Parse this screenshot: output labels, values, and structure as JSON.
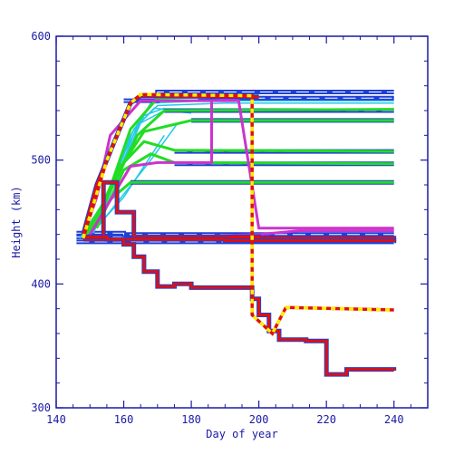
{
  "chart_data": {
    "type": "line",
    "title": "",
    "xlabel": "Day of year",
    "ylabel": "Height (km)",
    "xlim": [
      140,
      250
    ],
    "ylim": [
      300,
      600
    ],
    "x_ticks": [
      140,
      160,
      180,
      200,
      220,
      240
    ],
    "y_ticks": [
      300,
      400,
      500,
      600
    ],
    "grid": false,
    "colors": {
      "axis": "#1a1aa6",
      "blue": "#1f3fd6",
      "cyan": "#22c8e6",
      "green": "#22dd22",
      "magenta": "#cc33cc",
      "red": "#dd1111",
      "yellow": "#ffee00"
    },
    "series": [
      {
        "color": "blue",
        "style": "step",
        "points": [
          [
            146,
            438
          ],
          [
            160,
            437
          ],
          [
            200,
            437
          ],
          [
            240,
            437
          ]
        ]
      },
      {
        "color": "blue",
        "style": "step",
        "points": [
          [
            146,
            434
          ],
          [
            180,
            434
          ],
          [
            240,
            433
          ]
        ]
      },
      {
        "color": "blue",
        "style": "step",
        "points": [
          [
            146,
            441
          ],
          [
            160,
            440
          ],
          [
            240,
            440
          ]
        ]
      },
      {
        "color": "cyan",
        "style": "line",
        "points": [
          [
            148,
            438
          ],
          [
            155,
            470
          ],
          [
            162,
            520
          ],
          [
            168,
            546
          ],
          [
            185,
            548
          ],
          [
            240,
            548
          ]
        ]
      },
      {
        "color": "cyan",
        "style": "line",
        "points": [
          [
            150,
            440
          ],
          [
            157,
            480
          ],
          [
            164,
            528
          ],
          [
            170,
            544
          ],
          [
            190,
            546
          ],
          [
            240,
            546
          ]
        ]
      },
      {
        "color": "cyan",
        "style": "line",
        "points": [
          [
            149,
            438
          ],
          [
            156,
            476
          ],
          [
            163,
            525
          ],
          [
            169,
            542
          ],
          [
            175,
            540
          ]
        ]
      },
      {
        "color": "cyan",
        "style": "line",
        "points": [
          [
            151,
            441
          ],
          [
            158,
            486
          ],
          [
            165,
            530
          ],
          [
            172,
            540
          ],
          [
            180,
            538
          ]
        ]
      },
      {
        "color": "cyan",
        "style": "line",
        "points": [
          [
            147,
            437
          ],
          [
            154,
            466
          ],
          [
            160,
            505
          ],
          [
            166,
            536
          ],
          [
            172,
            542
          ]
        ]
      },
      {
        "color": "cyan",
        "style": "line",
        "points": [
          [
            152,
            445
          ],
          [
            168,
            500
          ],
          [
            176,
            530
          ]
        ]
      },
      {
        "color": "cyan",
        "style": "line",
        "points": [
          [
            150,
            440
          ],
          [
            160,
            470
          ],
          [
            172,
            520
          ]
        ]
      },
      {
        "color": "blue",
        "style": "step",
        "points": [
          [
            160,
            548
          ],
          [
            170,
            555
          ],
          [
            240,
            555
          ]
        ]
      },
      {
        "color": "blue",
        "style": "step",
        "points": [
          [
            182,
            550
          ],
          [
            200,
            550
          ],
          [
            240,
            550
          ]
        ]
      },
      {
        "color": "blue",
        "style": "step",
        "points": [
          [
            172,
            540
          ],
          [
            240,
            540
          ]
        ]
      },
      {
        "color": "blue",
        "style": "step",
        "points": [
          [
            180,
            532
          ],
          [
            240,
            532
          ]
        ]
      },
      {
        "color": "blue",
        "style": "step",
        "points": [
          [
            175,
            507
          ],
          [
            240,
            507
          ]
        ]
      },
      {
        "color": "blue",
        "style": "step",
        "points": [
          [
            175,
            497
          ],
          [
            240,
            497
          ]
        ]
      },
      {
        "color": "blue",
        "style": "step",
        "points": [
          [
            162,
            482
          ],
          [
            240,
            482
          ]
        ]
      },
      {
        "color": "green",
        "style": "line",
        "points": [
          [
            148,
            438
          ],
          [
            155,
            470
          ],
          [
            162,
            525
          ],
          [
            170,
            550
          ],
          [
            200,
            552
          ]
        ]
      },
      {
        "color": "green",
        "style": "line",
        "points": [
          [
            149,
            440
          ],
          [
            157,
            480
          ],
          [
            164,
            520
          ],
          [
            172,
            540
          ],
          [
            240,
            541
          ]
        ]
      },
      {
        "color": "green",
        "style": "line",
        "points": [
          [
            150,
            442
          ],
          [
            158,
            490
          ],
          [
            166,
            523
          ],
          [
            180,
            532
          ],
          [
            240,
            532
          ]
        ]
      },
      {
        "color": "green",
        "style": "line",
        "points": [
          [
            151,
            444
          ],
          [
            159,
            495
          ],
          [
            166,
            515
          ],
          [
            175,
            508
          ],
          [
            240,
            507
          ]
        ]
      },
      {
        "color": "green",
        "style": "line",
        "points": [
          [
            152,
            445
          ],
          [
            160,
            492
          ],
          [
            168,
            505
          ],
          [
            175,
            498
          ],
          [
            240,
            497
          ]
        ]
      },
      {
        "color": "green",
        "style": "line",
        "points": [
          [
            150,
            441
          ],
          [
            156,
            468
          ],
          [
            162,
            482
          ],
          [
            240,
            482
          ]
        ]
      },
      {
        "color": "magenta",
        "style": "line",
        "points": [
          [
            150,
            440
          ],
          [
            162,
            495
          ],
          [
            170,
            498
          ],
          [
            186,
            498
          ],
          [
            186,
            548
          ],
          [
            194,
            549
          ]
        ]
      },
      {
        "color": "magenta",
        "style": "line",
        "points": [
          [
            148,
            438
          ],
          [
            152,
            470
          ],
          [
            156,
            520
          ],
          [
            165,
            548
          ],
          [
            185,
            548
          ],
          [
            194,
            548
          ],
          [
            200,
            445
          ],
          [
            240,
            445
          ]
        ]
      },
      {
        "color": "magenta",
        "style": "line",
        "points": [
          [
            156,
            436
          ],
          [
            200,
            440
          ],
          [
            212,
            443
          ],
          [
            240,
            443
          ]
        ]
      },
      {
        "color": "red",
        "style": "step",
        "points": [
          [
            148,
            437
          ],
          [
            154,
            482
          ],
          [
            158,
            458
          ],
          [
            163,
            438
          ],
          [
            200,
            437
          ],
          [
            240,
            436
          ]
        ]
      },
      {
        "color": "red",
        "style": "step",
        "points": [
          [
            148,
            436
          ],
          [
            190,
            435
          ],
          [
            240,
            434
          ]
        ]
      },
      {
        "color": "red",
        "style": "step",
        "points": [
          [
            148,
            438
          ],
          [
            155,
            436
          ],
          [
            160,
            432
          ],
          [
            163,
            422
          ],
          [
            166,
            410
          ],
          [
            170,
            398
          ],
          [
            175,
            400
          ],
          [
            180,
            397
          ],
          [
            195,
            397
          ],
          [
            198,
            388
          ],
          [
            200,
            375
          ],
          [
            203,
            362
          ],
          [
            206,
            355
          ],
          [
            210,
            355
          ],
          [
            214,
            354
          ],
          [
            220,
            327
          ],
          [
            226,
            331
          ],
          [
            240,
            330
          ]
        ]
      },
      {
        "color": "red",
        "style": "line",
        "points": [
          [
            148,
            440
          ],
          [
            152,
            480
          ],
          [
            158,
            520
          ],
          [
            162,
            546
          ],
          [
            165,
            552
          ],
          [
            200,
            551
          ]
        ]
      },
      {
        "color": "yellow-red",
        "style": "dashed",
        "points": [
          [
            148,
            437
          ],
          [
            155,
            500
          ],
          [
            162,
            546
          ],
          [
            165,
            553
          ],
          [
            198,
            552
          ],
          [
            198,
            375
          ],
          [
            204,
            360
          ],
          [
            208,
            381
          ],
          [
            240,
            379
          ]
        ]
      }
    ]
  }
}
